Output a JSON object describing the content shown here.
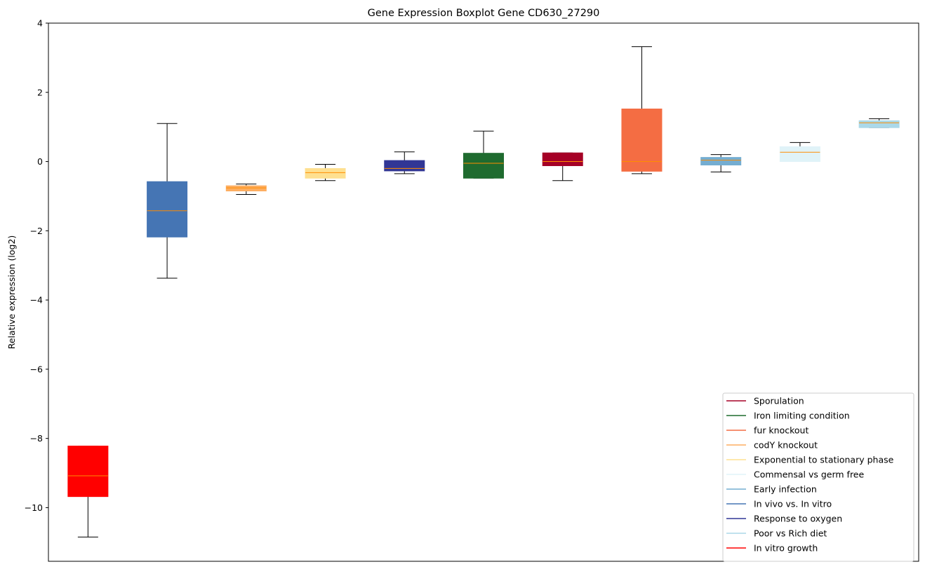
{
  "chart_data": {
    "type": "boxplot",
    "title": "Gene Expression Boxplot Gene CD630_27290",
    "xlabel": "",
    "ylabel": "Relative expression (log2)",
    "ylim": [
      -11.55,
      4
    ],
    "yticks": [
      4,
      2,
      0,
      -2,
      -4,
      -6,
      -8,
      -10
    ],
    "ytick_labels": [
      "4",
      "2",
      "0",
      "−2",
      "−4",
      "−6",
      "−8",
      "−10"
    ],
    "grid": false,
    "legend_position": "lower-right",
    "median_color": "#ff8c00",
    "boxes": [
      {
        "series": "In vitro growth",
        "color": "#ff0000",
        "whislo": -10.85,
        "q1": -9.68,
        "med": -9.08,
        "q3": -8.22,
        "whishi": -8.22
      },
      {
        "series": "In vivo vs. In vitro",
        "color": "#4575b4",
        "whislo": -3.37,
        "q1": -2.18,
        "med": -1.42,
        "q3": -0.58,
        "whishi": 1.1
      },
      {
        "series": "codY knockout",
        "color": "#fdae61",
        "whislo": -0.95,
        "q1": -0.85,
        "med": -0.76,
        "q3": -0.7,
        "whishi": -0.65
      },
      {
        "series": "Exponential to stationary phase",
        "color": "#fee090",
        "whislo": -0.55,
        "q1": -0.48,
        "med": -0.32,
        "q3": -0.2,
        "whishi": -0.08
      },
      {
        "series": "Response to oxygen",
        "color": "#313695",
        "whislo": -0.35,
        "q1": -0.27,
        "med": -0.2,
        "q3": 0.03,
        "whishi": 0.28
      },
      {
        "series": "Iron limiting condition",
        "color": "#1f6b2f",
        "whislo": -0.48,
        "q1": -0.48,
        "med": -0.05,
        "q3": 0.24,
        "whishi": 0.88
      },
      {
        "series": "Sporulation",
        "color": "#a50026",
        "whislo": -0.55,
        "q1": -0.12,
        "med": 0.0,
        "q3": 0.25,
        "whishi": 0.25
      },
      {
        "series": "fur knockout",
        "color": "#f46d43",
        "whislo": -0.35,
        "q1": -0.28,
        "med": 0.0,
        "q3": 1.52,
        "whishi": 3.32
      },
      {
        "series": "Early infection",
        "color": "#74add1",
        "whislo": -0.3,
        "q1": -0.1,
        "med": 0.04,
        "q3": 0.12,
        "whishi": 0.2
      },
      {
        "series": "Commensal vs germ free",
        "color": "#e0f3f8",
        "whislo": 0.0,
        "q1": 0.0,
        "med": 0.27,
        "q3": 0.43,
        "whishi": 0.55
      },
      {
        "series": "Poor vs Rich diet",
        "color": "#abd9e9",
        "whislo": 0.98,
        "q1": 0.98,
        "med": 1.12,
        "q3": 1.18,
        "whishi": 1.24
      }
    ],
    "legend": [
      {
        "name": "Sporulation",
        "color": "#a50026"
      },
      {
        "name": "Iron limiting condition",
        "color": "#1f6b2f"
      },
      {
        "name": "fur knockout",
        "color": "#f46d43"
      },
      {
        "name": "codY knockout",
        "color": "#fdae61"
      },
      {
        "name": "Exponential to stationary phase",
        "color": "#fee090"
      },
      {
        "name": "Commensal vs germ free",
        "color": "#e0f3f8"
      },
      {
        "name": "Early infection",
        "color": "#74add1"
      },
      {
        "name": "In vivo vs. In vitro",
        "color": "#4575b4"
      },
      {
        "name": "Response to oxygen",
        "color": "#313695"
      },
      {
        "name": "Poor vs Rich diet",
        "color": "#abd9e9"
      },
      {
        "name": "In vitro growth",
        "color": "#ff0000"
      }
    ]
  }
}
